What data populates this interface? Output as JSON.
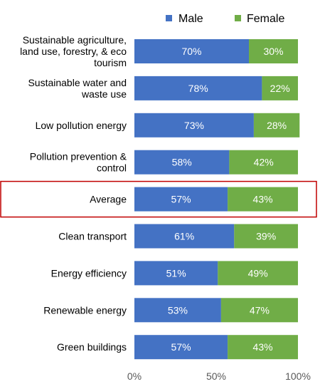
{
  "chart_data": {
    "type": "bar",
    "orientation": "horizontal",
    "stacked": true,
    "percent_stacked": true,
    "categories": [
      [
        "Sustainable agriculture,",
        "land use, forestry, & eco",
        "tourism"
      ],
      [
        "Sustainable water and",
        "waste use"
      ],
      [
        "Low pollution energy"
      ],
      [
        "Pollution prevention &",
        "control"
      ],
      [
        "Average"
      ],
      [
        "Clean transport"
      ],
      [
        "Energy efficiency"
      ],
      [
        "Renewable energy"
      ],
      [
        "Green buildings"
      ]
    ],
    "series": [
      {
        "name": "Male",
        "color": "#4472C4",
        "values": [
          70,
          78,
          73,
          58,
          57,
          61,
          51,
          53,
          57
        ],
        "labels": [
          "70%",
          "78%",
          "73%",
          "58%",
          "57%",
          "61%",
          "51%",
          "53%",
          "57%"
        ]
      },
      {
        "name": "Female",
        "color": "#70AD47",
        "values": [
          30,
          22,
          28,
          42,
          43,
          39,
          49,
          47,
          43
        ],
        "labels": [
          "30%",
          "22%",
          "28%",
          "42%",
          "43%",
          "39%",
          "49%",
          "47%",
          "43%"
        ]
      }
    ],
    "xlim": [
      0,
      100
    ],
    "xticks": [
      0,
      50,
      100
    ],
    "xtick_labels": [
      "0%",
      "50%",
      "100%"
    ],
    "legend_position": "top",
    "grid": false,
    "highlight": {
      "category_index": 4,
      "color": "#C00000"
    }
  }
}
